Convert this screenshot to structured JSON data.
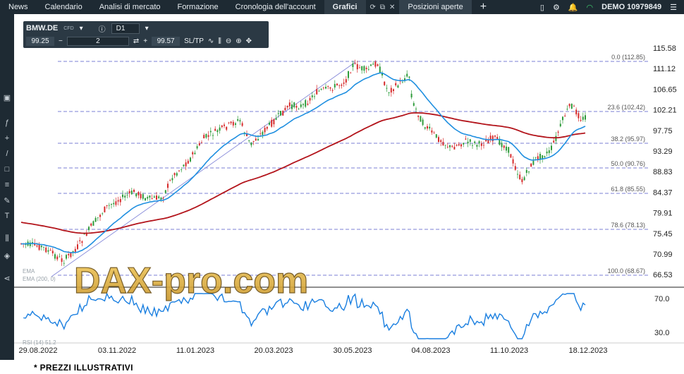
{
  "topbar": {
    "tabs": [
      "News",
      "Calendario",
      "Analisi di mercato",
      "Formazione",
      "Cronologia dell'account",
      "Grafici",
      "Posizioni aperte"
    ],
    "account": "DEMO 10979849"
  },
  "toolbar": {
    "symbol": "BMW.DE",
    "symbol_type": "CFD",
    "timeframe": "D1",
    "bid": "99.25",
    "quantity": "2",
    "ask": "99.57",
    "sltp": "SL/TP"
  },
  "chart": {
    "y_labels": [
      "115.58",
      "111.12",
      "106.65",
      "102.21",
      "97.75",
      "93.29",
      "88.83",
      "84.37",
      "79.91",
      "75.45",
      "70.99",
      "66.53"
    ],
    "x_labels": [
      "29.08.2022",
      "03.11.2022",
      "11.01.2023",
      "20.03.2023",
      "30.05.2023",
      "04.08.2023",
      "11.10.2023",
      "18.12.2023"
    ],
    "fib_labels": [
      "0.0 (112.85)",
      "23.6 (102.42)",
      "38.2 (95.97)",
      "50.0 (90.76)",
      "61.8 (85.55)",
      "78.6 (78.13)",
      "100.0 (68.67)"
    ],
    "rsi_labels": [
      "70.0",
      "30.0"
    ],
    "indicator_labels": [
      "EMA",
      "EMA (200, 0)",
      "RSI (14) 51.2"
    ],
    "watermark": "DAX-pro.com",
    "colors": {
      "ema_fast": "#1f8fe0",
      "ema_slow": "#b3141b",
      "candle_up": "#2e9b3a",
      "candle_down": "#d62a2a",
      "rsi": "#1a7fe0",
      "fib": "#7b7fd6"
    }
  },
  "footer": {
    "note": "* PREZZI ILLUSTRATIVI"
  }
}
